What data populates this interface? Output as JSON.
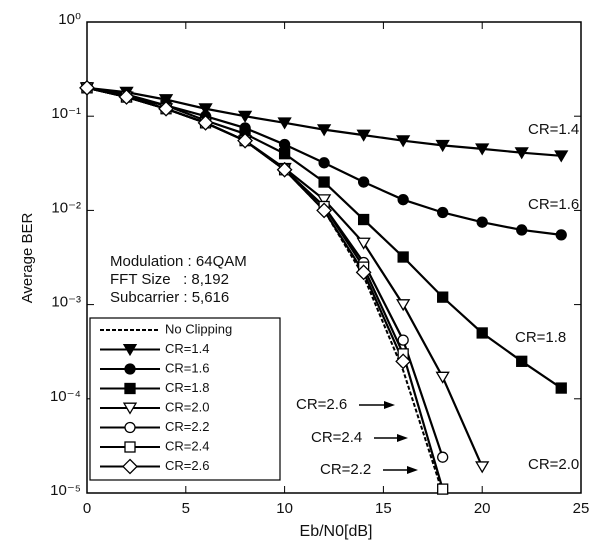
{
  "chart_data": {
    "type": "line",
    "x_label": "Eb/N0[dB]",
    "y_label": "Average BER",
    "log_y": true,
    "xlim": [
      0,
      25
    ],
    "xticks": [
      0,
      5,
      10,
      15,
      20,
      25
    ],
    "ylim": [
      1e-05,
      1
    ],
    "yticks": [
      {
        "value": 1,
        "label": "10⁰"
      },
      {
        "value": 0.1,
        "label": "10⁻¹"
      },
      {
        "value": 0.01,
        "label": "10⁻²"
      },
      {
        "value": 0.001,
        "label": "10⁻³"
      },
      {
        "value": 0.0001,
        "label": "10⁻⁴"
      },
      {
        "value": 1e-05,
        "label": "10⁻⁵"
      }
    ],
    "x": [
      0,
      2,
      4,
      6,
      8,
      10,
      12,
      14,
      16,
      18,
      20,
      22,
      24
    ],
    "series": [
      {
        "name": "No Clipping",
        "color": "#000000",
        "dashed": true,
        "marker": "none",
        "values": [
          0.2,
          0.16,
          0.12,
          0.085,
          0.055,
          0.027,
          0.01,
          0.002,
          0.0002,
          1e-05,
          null,
          null,
          null
        ]
      },
      {
        "name": "CR=1.4",
        "color": "#000000",
        "marker": "triangle-down-filled",
        "values": [
          0.2,
          0.18,
          0.15,
          0.12,
          0.1,
          0.085,
          0.072,
          0.063,
          0.055,
          0.049,
          0.045,
          0.041,
          0.038
        ]
      },
      {
        "name": "CR=1.6",
        "color": "#000000",
        "marker": "circle-filled",
        "values": [
          0.2,
          0.17,
          0.13,
          0.1,
          0.075,
          0.05,
          0.032,
          0.02,
          0.013,
          0.0095,
          0.0075,
          0.0062,
          0.0055
        ]
      },
      {
        "name": "CR=1.8",
        "color": "#000000",
        "marker": "square-filled",
        "values": [
          0.2,
          0.16,
          0.13,
          0.09,
          0.065,
          0.04,
          0.02,
          0.008,
          0.0032,
          0.0012,
          0.0005,
          0.00025,
          0.00013
        ]
      },
      {
        "name": "CR=2.0",
        "color": "#000000",
        "marker": "triangle-down-open",
        "values": [
          0.2,
          0.16,
          0.12,
          0.085,
          0.055,
          0.028,
          0.013,
          0.0045,
          0.001,
          0.00017,
          1.9e-05,
          null,
          null
        ]
      },
      {
        "name": "CR=2.2",
        "color": "#000000",
        "marker": "circle-open",
        "values": [
          0.2,
          0.16,
          0.12,
          0.085,
          0.055,
          0.027,
          0.011,
          0.0028,
          0.00042,
          2.4e-05,
          null,
          null,
          null
        ]
      },
      {
        "name": "CR=2.4",
        "color": "#000000",
        "marker": "square-open",
        "values": [
          0.2,
          0.16,
          0.12,
          0.085,
          0.055,
          0.027,
          0.011,
          0.0025,
          0.0003,
          1.1e-05,
          null,
          null,
          null
        ]
      },
      {
        "name": "CR=2.6",
        "color": "#000000",
        "marker": "diamond-open",
        "values": [
          0.2,
          0.16,
          0.12,
          0.085,
          0.055,
          0.027,
          0.01,
          0.0022,
          0.00025,
          null,
          null,
          null,
          null
        ]
      }
    ],
    "annotations": [
      "CR=1.4",
      "CR=1.6",
      "CR=1.8",
      "CR=2.0",
      "CR=2.6",
      "CR=2.4",
      "CR=2.2"
    ],
    "info_lines": [
      "Modulation : 64QAM",
      "FFT Size   : 8,192",
      "Subcarrier : 5,616"
    ],
    "legend": "lower-left"
  }
}
